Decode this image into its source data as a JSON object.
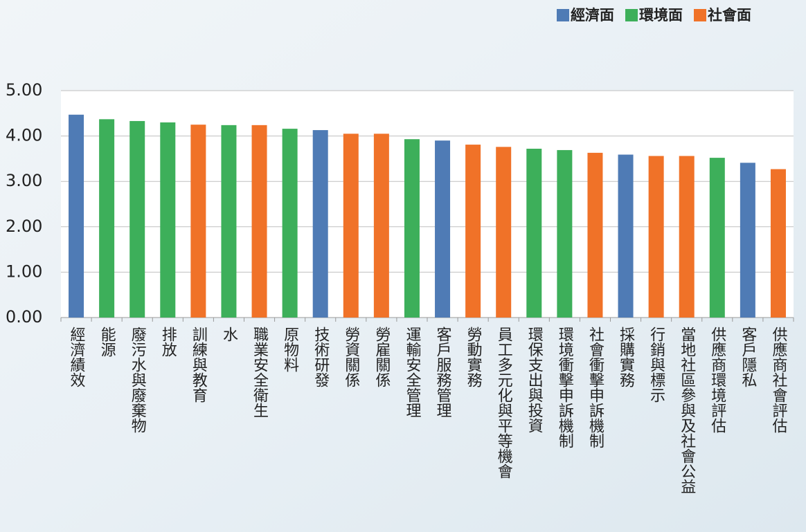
{
  "chart_data": {
    "type": "bar",
    "categories": [
      "經濟績效",
      "能源",
      "廢污水與廢棄物",
      "排放",
      "訓練與教育",
      "水",
      "職業安全衛生",
      "原物料",
      "技術研發",
      "勞資關係",
      "勞雇關係",
      "運輸安全管理",
      "客戶服務管理",
      "勞動實務",
      "員工多元化與平等機會",
      "環保支出與投資",
      "環境衝擊申訴機制",
      "社會衝擊申訴機制",
      "採購實務",
      "行銷與標示",
      "當地社區參與及社會公益",
      "供應商環境評估",
      "客戶隱私",
      "供應商社會評估"
    ],
    "values": [
      4.47,
      4.37,
      4.33,
      4.3,
      4.25,
      4.24,
      4.24,
      4.16,
      4.13,
      4.05,
      4.05,
      3.93,
      3.9,
      3.81,
      3.76,
      3.72,
      3.69,
      3.63,
      3.59,
      3.56,
      3.56,
      3.52,
      3.41,
      3.27
    ],
    "colors": [
      "#4f7bb5",
      "#3daf5a",
      "#3daf5a",
      "#3daf5a",
      "#f07228",
      "#3daf5a",
      "#f07228",
      "#3daf5a",
      "#4f7bb5",
      "#f07228",
      "#f07228",
      "#3daf5a",
      "#4f7bb5",
      "#f07228",
      "#f07228",
      "#3daf5a",
      "#3daf5a",
      "#f07228",
      "#4f7bb5",
      "#f07228",
      "#f07228",
      "#3daf5a",
      "#4f7bb5",
      "#f07228"
    ],
    "legend": [
      {
        "name": "經濟面",
        "color": "#4f7bb5"
      },
      {
        "name": "環境面",
        "color": "#3daf5a"
      },
      {
        "name": "社會面",
        "color": "#f07228"
      }
    ],
    "legend_position": "top-right",
    "ylim": [
      0,
      5
    ],
    "yticks": [
      {
        "value": 0,
        "label": "0.00"
      },
      {
        "value": 1,
        "label": "1.00"
      },
      {
        "value": 2,
        "label": "2.00"
      },
      {
        "value": 3,
        "label": "3.00"
      },
      {
        "value": 4,
        "label": "4.00"
      },
      {
        "value": 5,
        "label": "5.00"
      }
    ],
    "grid": true
  }
}
